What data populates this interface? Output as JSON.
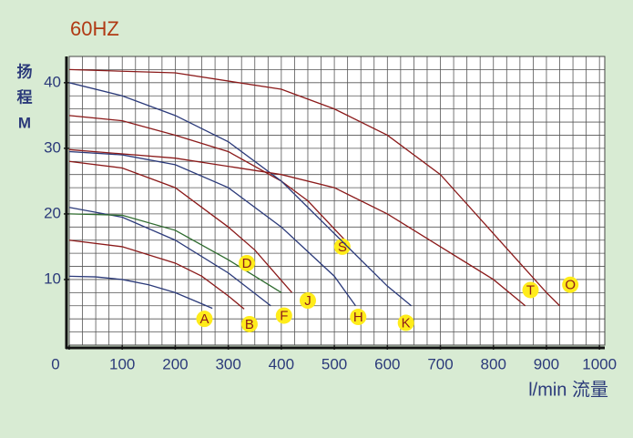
{
  "chart_data": {
    "type": "line",
    "title": "60HZ",
    "y_label_lines": [
      "扬",
      "程",
      "M"
    ],
    "x_label": "l/min 流量",
    "xlim": [
      0,
      1010
    ],
    "ylim": [
      0,
      44
    ],
    "xticks": [
      0,
      100,
      200,
      300,
      400,
      500,
      600,
      700,
      800,
      900,
      1000
    ],
    "yticks": [
      10,
      20,
      30,
      40
    ],
    "grid": true,
    "series": [
      {
        "name": "A",
        "color": "#2b3a7a",
        "x": [
          0,
          50,
          100,
          150,
          200,
          250,
          270
        ],
        "values": [
          10.5,
          10.4,
          10,
          9.2,
          8,
          6.3,
          5.6
        ]
      },
      {
        "name": "B",
        "color": "#8b1a1a",
        "x": [
          0,
          100,
          200,
          250,
          300,
          330
        ],
        "values": [
          16,
          15,
          12.5,
          10.5,
          7.5,
          5.5
        ]
      },
      {
        "name": "F",
        "color": "#2b3a7a",
        "x": [
          0,
          100,
          200,
          300,
          380
        ],
        "values": [
          21,
          19.5,
          16,
          11,
          6
        ]
      },
      {
        "name": "D",
        "color": "#2e6b2e",
        "x": [
          0,
          100,
          200,
          300,
          400
        ],
        "values": [
          20,
          19.8,
          17.5,
          13,
          8
        ]
      },
      {
        "name": "J",
        "color": "#8b1a1a",
        "x": [
          0,
          100,
          200,
          300,
          350,
          420
        ],
        "values": [
          28,
          27,
          24,
          18,
          14.5,
          8
        ]
      },
      {
        "name": "H",
        "color": "#2b3a7a",
        "x": [
          0,
          100,
          200,
          300,
          400,
          500,
          540
        ],
        "values": [
          29.5,
          29,
          27.5,
          24,
          18,
          10.5,
          6
        ]
      },
      {
        "name": "S",
        "color": "#8b1a1a",
        "x": [
          0,
          100,
          200,
          300,
          400,
          450,
          520
        ],
        "values": [
          35,
          34.2,
          32,
          29.5,
          25,
          22,
          16
        ]
      },
      {
        "name": "K",
        "color": "#2b3a7a",
        "x": [
          0,
          100,
          200,
          300,
          400,
          500,
          600,
          645
        ],
        "values": [
          40,
          38,
          35,
          31,
          25,
          17,
          9,
          6
        ]
      },
      {
        "name": "T",
        "color": "#8b1a1a",
        "x": [
          0,
          200,
          400,
          500,
          600,
          700,
          800,
          860
        ],
        "values": [
          29.8,
          28.5,
          26,
          24,
          20,
          15,
          10,
          6
        ]
      },
      {
        "name": "O",
        "color": "#8b1a1a",
        "x": [
          0,
          200,
          400,
          500,
          600,
          700,
          800,
          900,
          925
        ],
        "values": [
          42,
          41.5,
          39,
          36,
          32,
          26,
          17,
          8,
          6
        ]
      }
    ]
  }
}
